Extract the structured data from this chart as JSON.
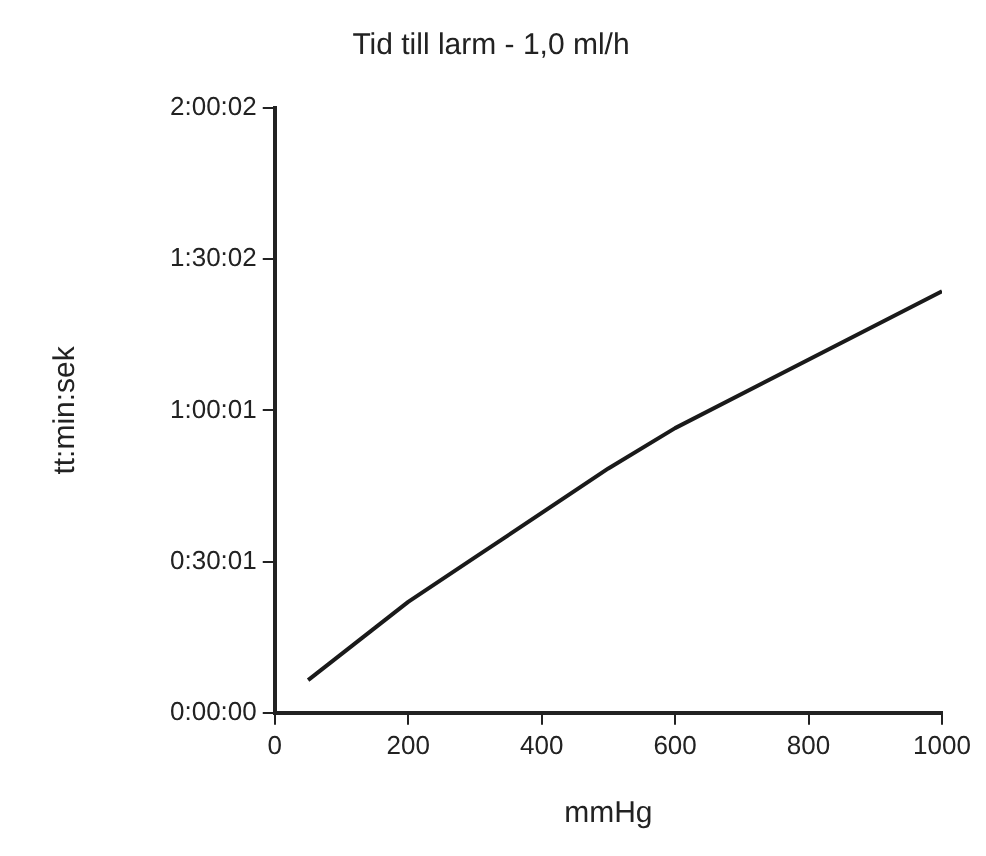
{
  "chart_data": {
    "type": "line",
    "title": "Tid till larm - 1,0 ml/h",
    "xlabel": "mmHg",
    "ylabel": "tt:min:sek",
    "x": [
      50,
      200,
      300,
      500,
      600,
      1000
    ],
    "series": [
      {
        "color": "#1a1a1a",
        "values": [
          390,
          1320,
          1850,
          2910,
          3390,
          5020
        ]
      }
    ],
    "xlim": [
      0,
      1000
    ],
    "xticks": [
      0,
      200,
      400,
      600,
      800,
      1000
    ],
    "ylim": [
      0,
      7202
    ],
    "yticks": [
      {
        "value": 0,
        "label": "0:00:00"
      },
      {
        "value": 1801,
        "label": "0:30:01"
      },
      {
        "value": 3601,
        "label": "1:00:01"
      },
      {
        "value": 5402,
        "label": "1:30:02"
      },
      {
        "value": 7202,
        "label": "2:00:02"
      }
    ],
    "grid": false,
    "legend": false,
    "marker": "none",
    "line_style": "solid"
  }
}
